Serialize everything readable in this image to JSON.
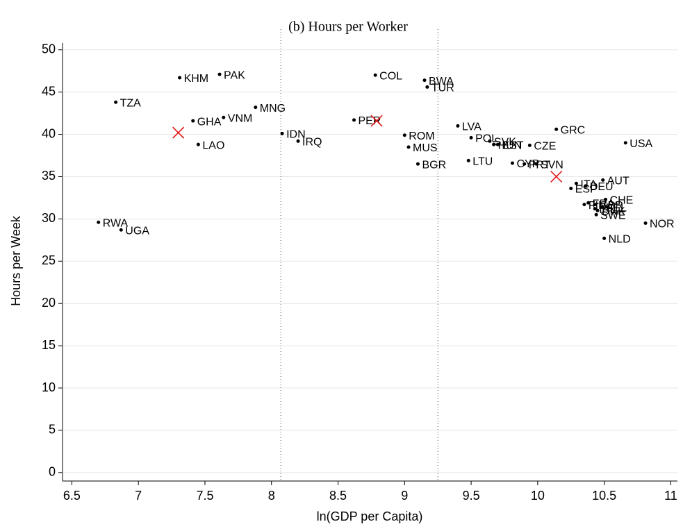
{
  "chart_data": {
    "type": "scatter",
    "title": "(b) Hours per Worker",
    "x_label": "ln(GDP per Capita)",
    "y_label": "Hours per Week",
    "labels": [
      "KHM",
      "PAK",
      "TZA",
      "GHA",
      "VNM",
      "MNG",
      "LAO",
      "IDN",
      "IRQ",
      "RWA",
      "UGA",
      "COL",
      "BWA",
      "TUR",
      "PER",
      "ROM",
      "MUS",
      "BGR",
      "LVA",
      "POL",
      "SVK",
      "HUN",
      "EST",
      "CZE",
      "LTU",
      "CYP",
      "PRT",
      "SVN",
      "GRC",
      "USA",
      "ITA",
      "AUT",
      "DEU",
      "ESP",
      "CHE",
      "FIN",
      "FRA",
      "GBR",
      "DNK",
      "IRL",
      "BEL",
      "SWE",
      "NOR",
      "NLD"
    ],
    "x": [
      7.31,
      7.61,
      6.83,
      7.41,
      7.64,
      7.88,
      7.45,
      8.08,
      8.2,
      6.7,
      6.87,
      8.78,
      9.15,
      9.17,
      8.62,
      9.0,
      9.03,
      9.1,
      9.4,
      9.5,
      9.64,
      9.67,
      9.7,
      9.94,
      9.48,
      9.81,
      9.9,
      9.99,
      10.14,
      10.66,
      10.29,
      10.49,
      10.36,
      10.25,
      10.51,
      10.35,
      10.38,
      10.43,
      10.45,
      10.43,
      10.48,
      10.44,
      10.81,
      10.5
    ],
    "values": [
      46.7,
      47.1,
      43.8,
      41.6,
      42.0,
      43.2,
      38.8,
      40.1,
      39.2,
      29.6,
      28.7,
      47.0,
      46.4,
      45.6,
      41.7,
      39.9,
      38.5,
      36.5,
      41.0,
      39.6,
      39.2,
      38.8,
      38.8,
      38.7,
      36.9,
      36.6,
      36.5,
      36.5,
      40.6,
      39.0,
      34.2,
      34.6,
      33.9,
      33.6,
      32.3,
      31.7,
      31.9,
      31.7,
      31.0,
      31.2,
      31.4,
      30.5,
      29.5,
      27.7
    ],
    "color": "#000000",
    "markers": {
      "x": [
        7.3,
        8.79,
        10.14
      ],
      "values": [
        40.2,
        41.6,
        35.0
      ],
      "color": "#e41a1c"
    },
    "vlines": [
      8.07,
      9.25
    ],
    "xlim": [
      6.43,
      11.05
    ],
    "ylim": [
      -1,
      50.8
    ],
    "xticks": [
      6.5,
      7,
      7.5,
      8,
      8.5,
      9,
      9.5,
      10,
      10.5,
      11
    ],
    "yticks": [
      0,
      5,
      10,
      15,
      20,
      25,
      30,
      35,
      40,
      45,
      50
    ],
    "grid": true
  }
}
